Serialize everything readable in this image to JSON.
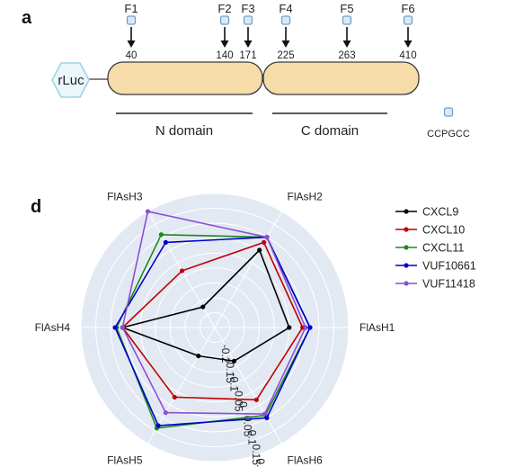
{
  "panel_a": {
    "letter": "a",
    "reporter": "rLuc",
    "tag_label": "CCPGCC",
    "sites": [
      {
        "name": "F1",
        "position": "40"
      },
      {
        "name": "F2",
        "position": "140"
      },
      {
        "name": "F3",
        "position": "171"
      },
      {
        "name": "F4",
        "position": "225"
      },
      {
        "name": "F5",
        "position": "263"
      },
      {
        "name": "F6",
        "position": "410"
      }
    ],
    "domains": [
      {
        "name": "N domain"
      },
      {
        "name": "C domain"
      }
    ]
  },
  "panel_d": {
    "letter": "d",
    "chart_data": {
      "type": "radar",
      "axes": [
        "FlAsH1",
        "FlAsH2",
        "FlAsH3",
        "FlAsH4",
        "FlAsH5",
        "FlAsH6"
      ],
      "rlim": [
        -0.25,
        0.2
      ],
      "ticks": [
        -0.2,
        -0.15,
        -0.1,
        -0.05,
        0,
        0.05,
        0.1,
        0.15,
        0.2
      ],
      "tick_labels": [
        "-0.2",
        "-0.15",
        "-0.1",
        "-0.05",
        "0",
        "0.05",
        "0.1",
        "0.15",
        "0.2"
      ],
      "grid": true,
      "legend_position": "top-right",
      "series": [
        {
          "name": "CXCL9",
          "color": "#000000",
          "values": [
            0.0,
            0.05,
            -0.17,
            0.06,
            -0.14,
            -0.12
          ]
        },
        {
          "name": "CXCL10",
          "color": "#c00000",
          "values": [
            0.045,
            0.08,
            -0.03,
            0.06,
            0.02,
            0.03
          ]
        },
        {
          "name": "CXCL11",
          "color": "#1a8a1a",
          "values": [
            0.07,
            0.1,
            0.11,
            0.08,
            0.14,
            0.09
          ]
        },
        {
          "name": "VUF10661",
          "color": "#0000cc",
          "values": [
            0.07,
            0.1,
            0.08,
            0.085,
            0.13,
            0.1
          ]
        },
        {
          "name": "VUF11418",
          "color": "#8c4fd6",
          "values": [
            0.055,
            0.1,
            0.2,
            0.06,
            0.08,
            0.085
          ]
        }
      ]
    }
  }
}
